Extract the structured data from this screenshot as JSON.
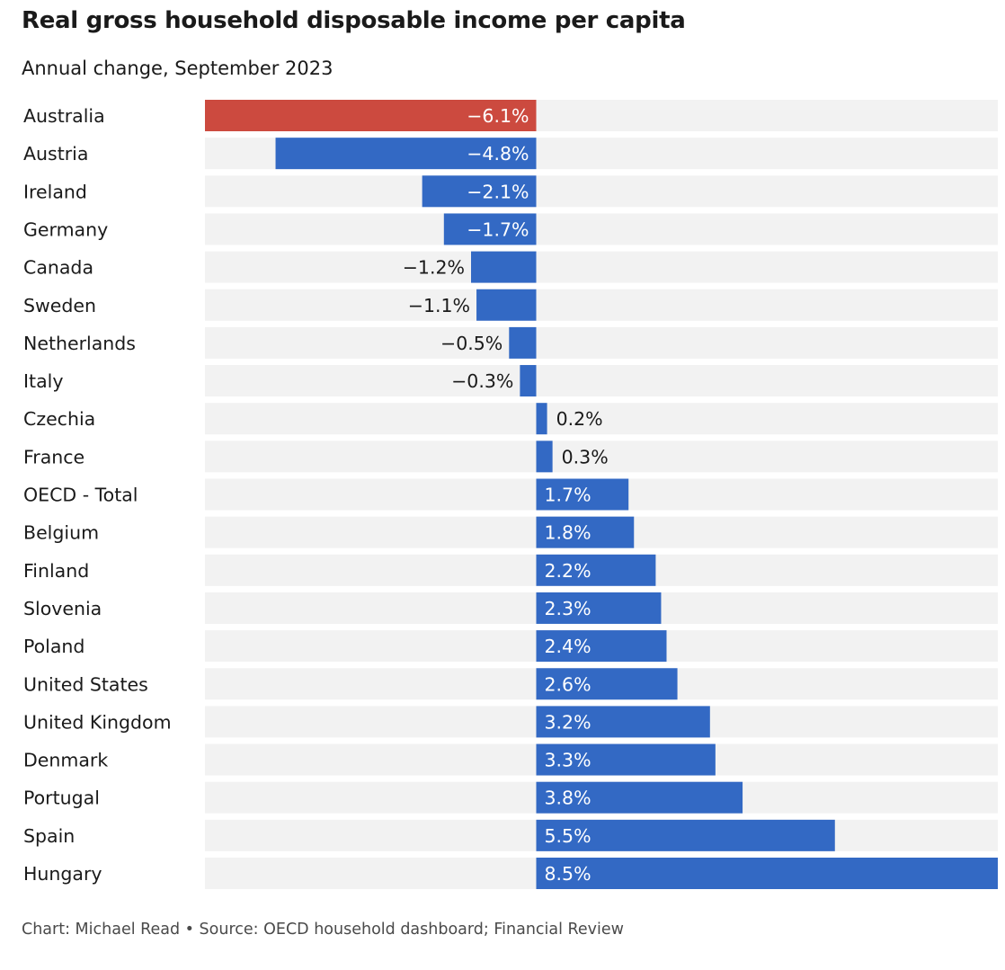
{
  "title": "Real gross household disposable income per capita",
  "subtitle": "Annual change, September 2023",
  "footer": "Chart: Michael Read • Source: OECD household dashboard; Financial Review",
  "colors": {
    "highlight": "#cc4a3f",
    "bar": "#3369c4",
    "row_background": "#f2f2f2",
    "label_inside": "#ffffff",
    "label_outside": "#1a1a1a"
  },
  "chart_data": {
    "type": "bar",
    "orientation": "horizontal",
    "title": "Real gross household disposable income per capita",
    "subtitle": "Annual change, September 2023",
    "unit": "%",
    "xlim": [
      -6.1,
      8.5
    ],
    "grid": false,
    "highlight_category": "Australia",
    "categories": [
      "Australia",
      "Austria",
      "Ireland",
      "Germany",
      "Canada",
      "Sweden",
      "Netherlands",
      "Italy",
      "Czechia",
      "France",
      "OECD - Total",
      "Belgium",
      "Finland",
      "Slovenia",
      "Poland",
      "United States",
      "United Kingdom",
      "Denmark",
      "Portugal",
      "Spain",
      "Hungary"
    ],
    "values": [
      -6.1,
      -4.8,
      -2.1,
      -1.7,
      -1.2,
      -1.1,
      -0.5,
      -0.3,
      0.2,
      0.3,
      1.7,
      1.8,
      2.2,
      2.3,
      2.4,
      2.6,
      3.2,
      3.3,
      3.8,
      5.5,
      8.5
    ],
    "value_labels": [
      "−6.1%",
      "−4.8%",
      "−2.1%",
      "−1.7%",
      "−1.2%",
      "−1.1%",
      "−0.5%",
      "−0.3%",
      "0.2%",
      "0.3%",
      "1.7%",
      "1.8%",
      "2.2%",
      "2.3%",
      "2.4%",
      "2.6%",
      "3.2%",
      "3.3%",
      "3.8%",
      "5.5%",
      "8.5%"
    ]
  }
}
